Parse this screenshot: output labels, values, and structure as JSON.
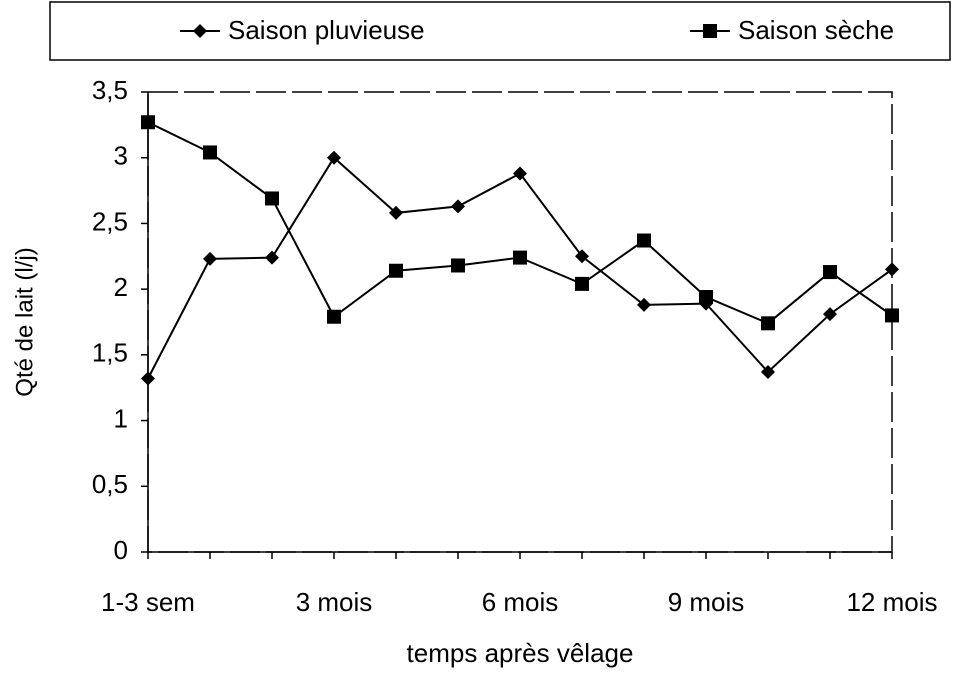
{
  "chart_data": {
    "type": "line",
    "xlabel": "temps après vêlage",
    "ylabel": "Qté de lait (l/j)",
    "categories": [
      "1-3 sem",
      null,
      null,
      "3 mois",
      null,
      null,
      "6 mois",
      null,
      null,
      "9 mois",
      null,
      null,
      "12 mois"
    ],
    "series": [
      {
        "name": "Saison pluvieuse",
        "color": "#000000",
        "marker": "diamond",
        "values": [
          1.32,
          2.23,
          2.24,
          3.0,
          2.58,
          2.63,
          2.88,
          2.25,
          1.88,
          1.89,
          1.37,
          1.81,
          2.15
        ]
      },
      {
        "name": "Saison sèche",
        "color": "#000000",
        "marker": "square",
        "values": [
          3.27,
          3.04,
          2.69,
          1.79,
          2.14,
          2.18,
          2.24,
          2.04,
          2.37,
          1.94,
          1.74,
          2.13,
          1.8
        ]
      }
    ],
    "ylim": [
      0,
      3.5
    ],
    "yticks": [
      0,
      {
        "value": 0.5,
        "label": "0,5"
      },
      1,
      {
        "value": 1.5,
        "label": "1,5"
      },
      2,
      {
        "value": 2.5,
        "label": "2,5"
      },
      3,
      {
        "value": 3.5,
        "label": "3,5"
      }
    ],
    "legend": "top"
  }
}
